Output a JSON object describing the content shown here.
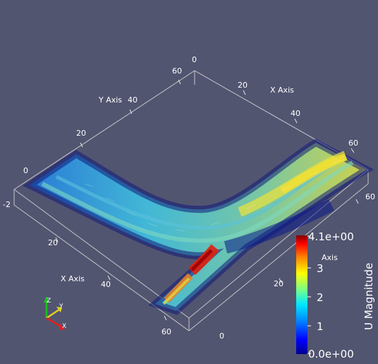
{
  "axes": {
    "x_axis_label": "X Axis",
    "y_axis_label": "Y Axis",
    "z_axis_label": "Z Axis",
    "z_axis_label_partial": "Axis",
    "ticks": {
      "top_0": "0",
      "top_x20": "20",
      "top_x40": "40",
      "top_x60": "60",
      "top_y60": "60",
      "top_y40": "40",
      "top_y20": "20",
      "top_y0": "0",
      "left_neg2": "-2",
      "bottom_x20": "20",
      "bottom_x40": "40",
      "bottom_x60": "60",
      "bottom_0": "0",
      "right_20": "20",
      "right_60": "60"
    }
  },
  "colorbar": {
    "title": "U Magnitude",
    "max_label": "4.1e+00",
    "min_label": "0.0e+00",
    "ticks": [
      "3",
      "2",
      "1"
    ],
    "colors": [
      "#000080",
      "#0000ff",
      "#00a0ff",
      "#00ffff",
      "#80ff80",
      "#ffff00",
      "#ff8000",
      "#ff0000",
      "#800000"
    ]
  },
  "orientation_axes": {
    "x": "X",
    "y": "Y",
    "z": "Z",
    "x_color": "#e02020",
    "y_color": "#e0d020",
    "z_color": "#20c020"
  }
}
